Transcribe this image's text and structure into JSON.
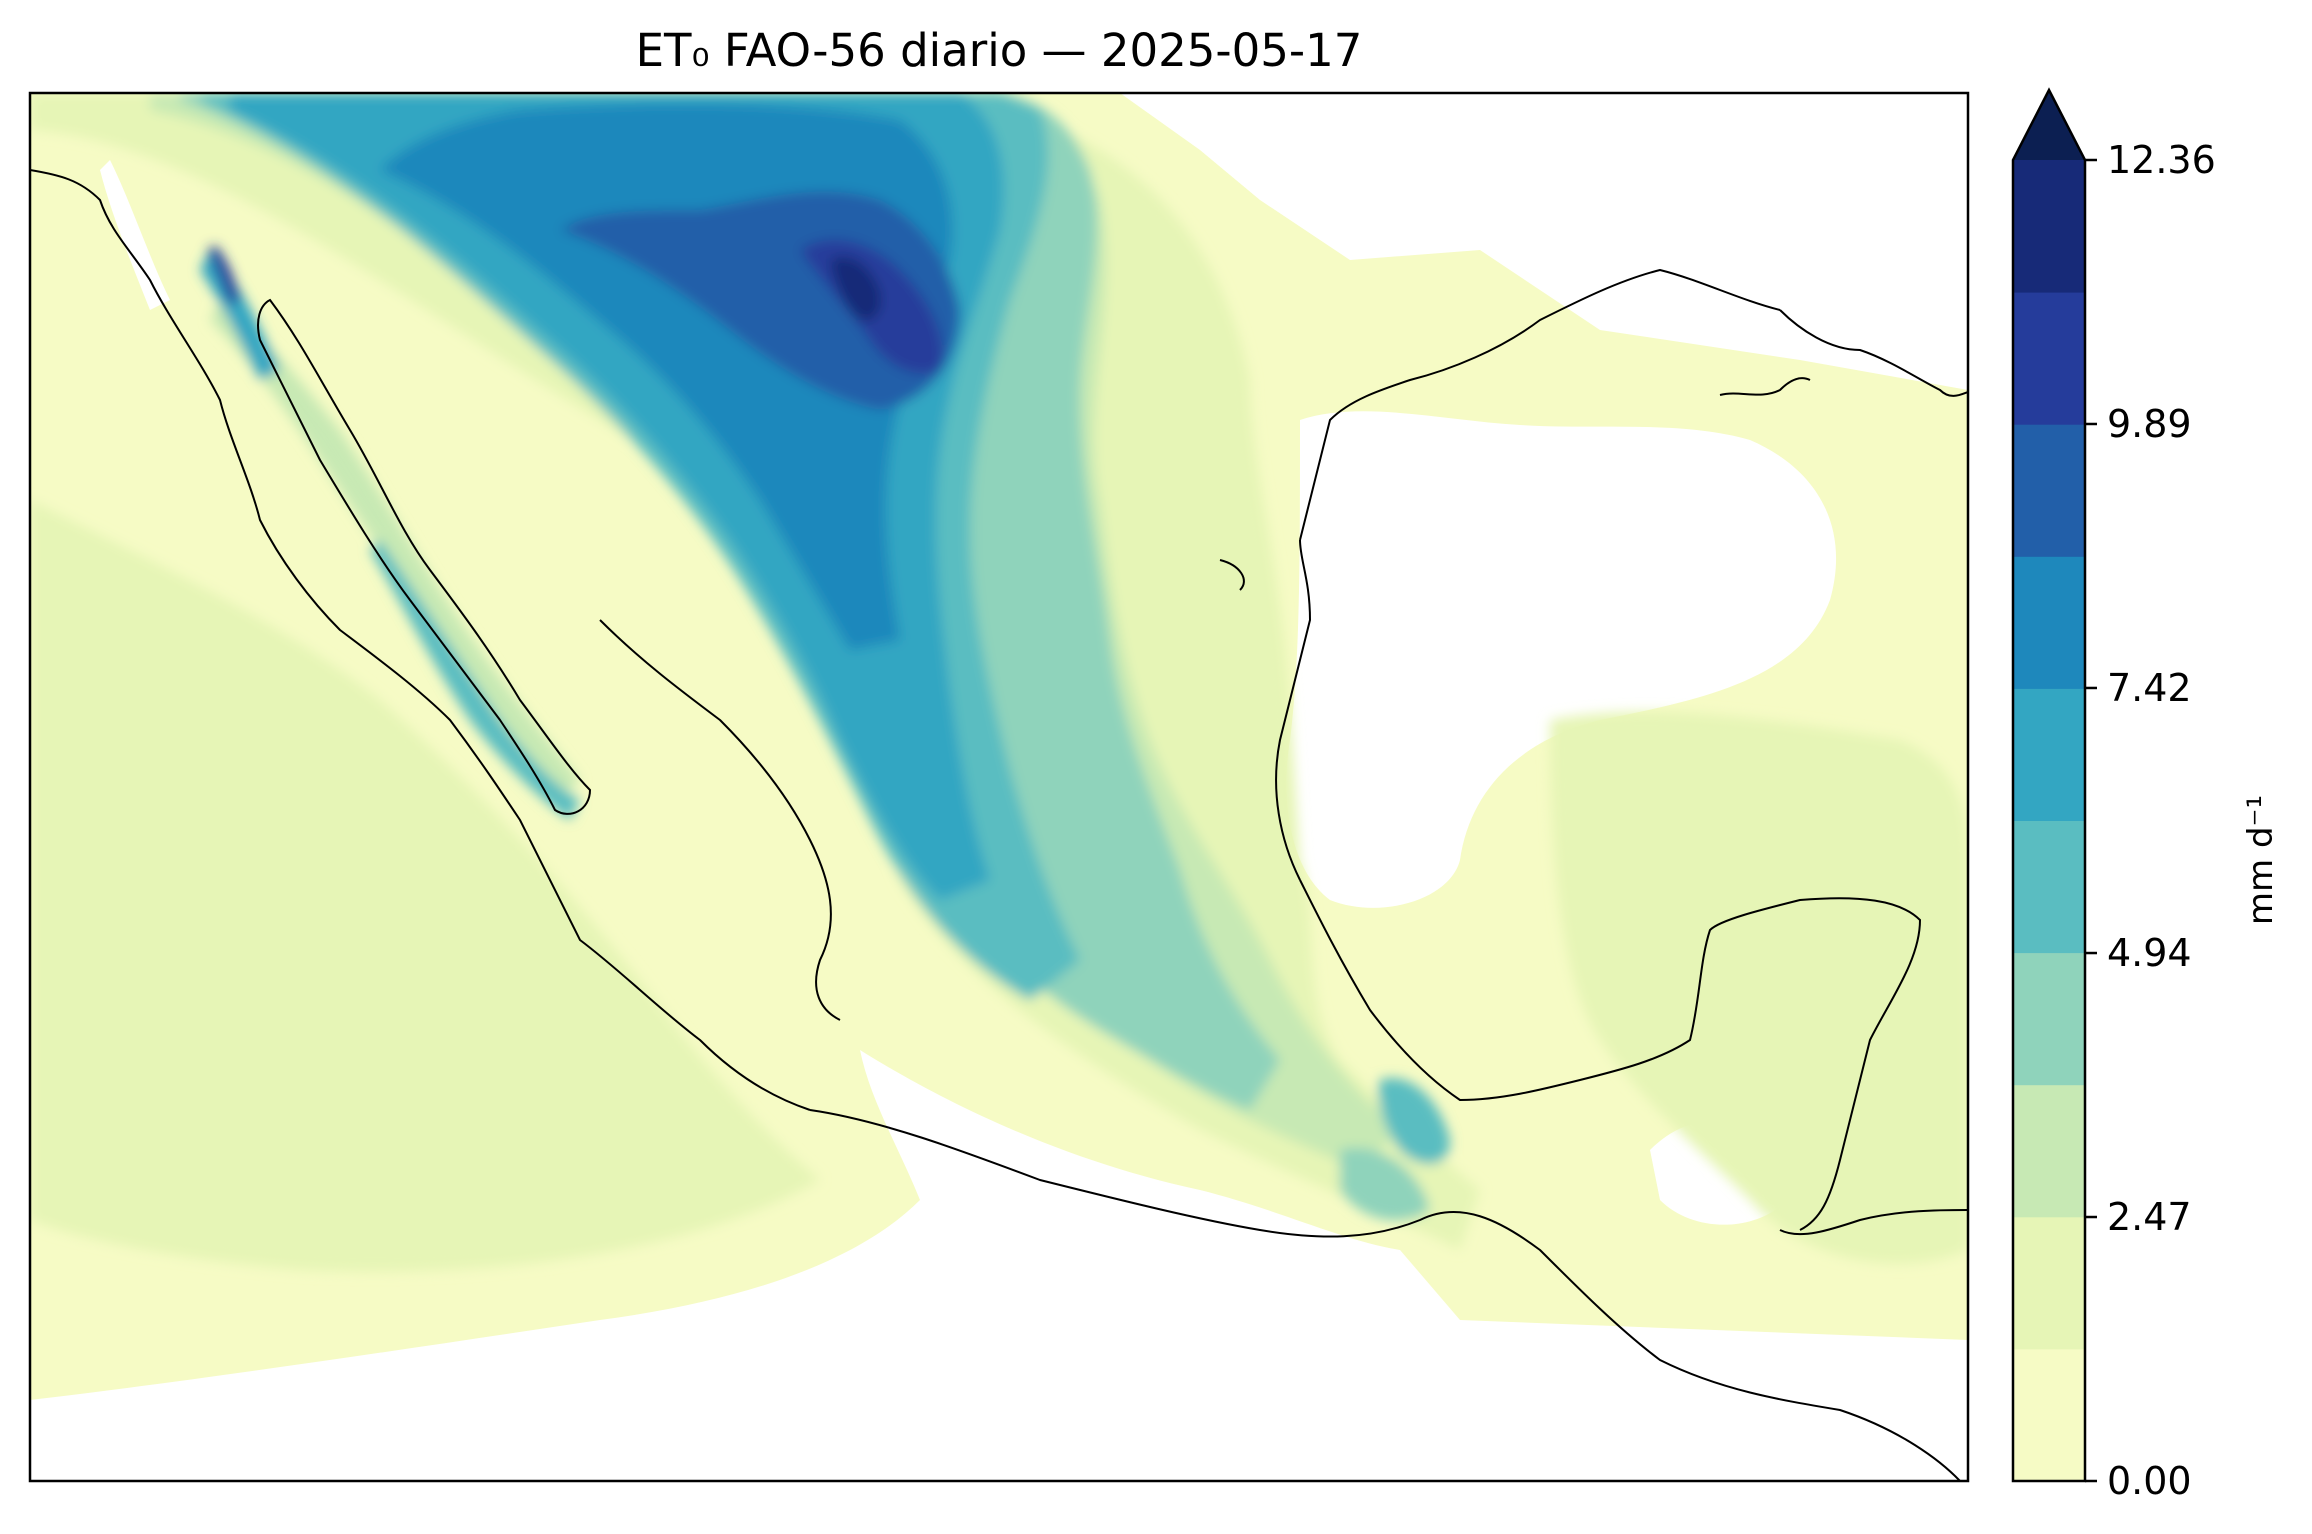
{
  "map": {
    "title": "ET₀ FAO-56 diario — 2025-05-17",
    "variable": "ET0 FAO-56",
    "date": "2025-05-17",
    "region": "Mexico and Gulf of Mexico",
    "colormap": "YlGnBu",
    "extend": "max",
    "colorbar": {
      "label": "mm d⁻¹",
      "ticks": [
        "12.36",
        "9.89",
        "7.42",
        "4.94",
        "2.47",
        "0.00"
      ],
      "levels": [
        0.0,
        1.236,
        2.472,
        3.708,
        4.944,
        6.18,
        7.416,
        8.652,
        9.888,
        11.124,
        12.36
      ],
      "colors": [
        "#f6fbc5",
        "#e6f5b6",
        "#c7e9b4",
        "#8fd3bb",
        "#5abdc1",
        "#33a6c2",
        "#1e88bc",
        "#225fa9",
        "#253c9b",
        "#172a78",
        "#0c1f52"
      ]
    }
  },
  "chart_data": {
    "type": "heatmap",
    "title": "ET₀ FAO-56 diario — 2025-05-17",
    "colorbar_label": "mm d⁻¹",
    "colorbar_ticks": [
      12.36,
      9.89,
      7.42,
      4.94,
      2.47,
      0.0
    ],
    "value_range": [
      0.0,
      12.36
    ],
    "extend": "max"
  }
}
